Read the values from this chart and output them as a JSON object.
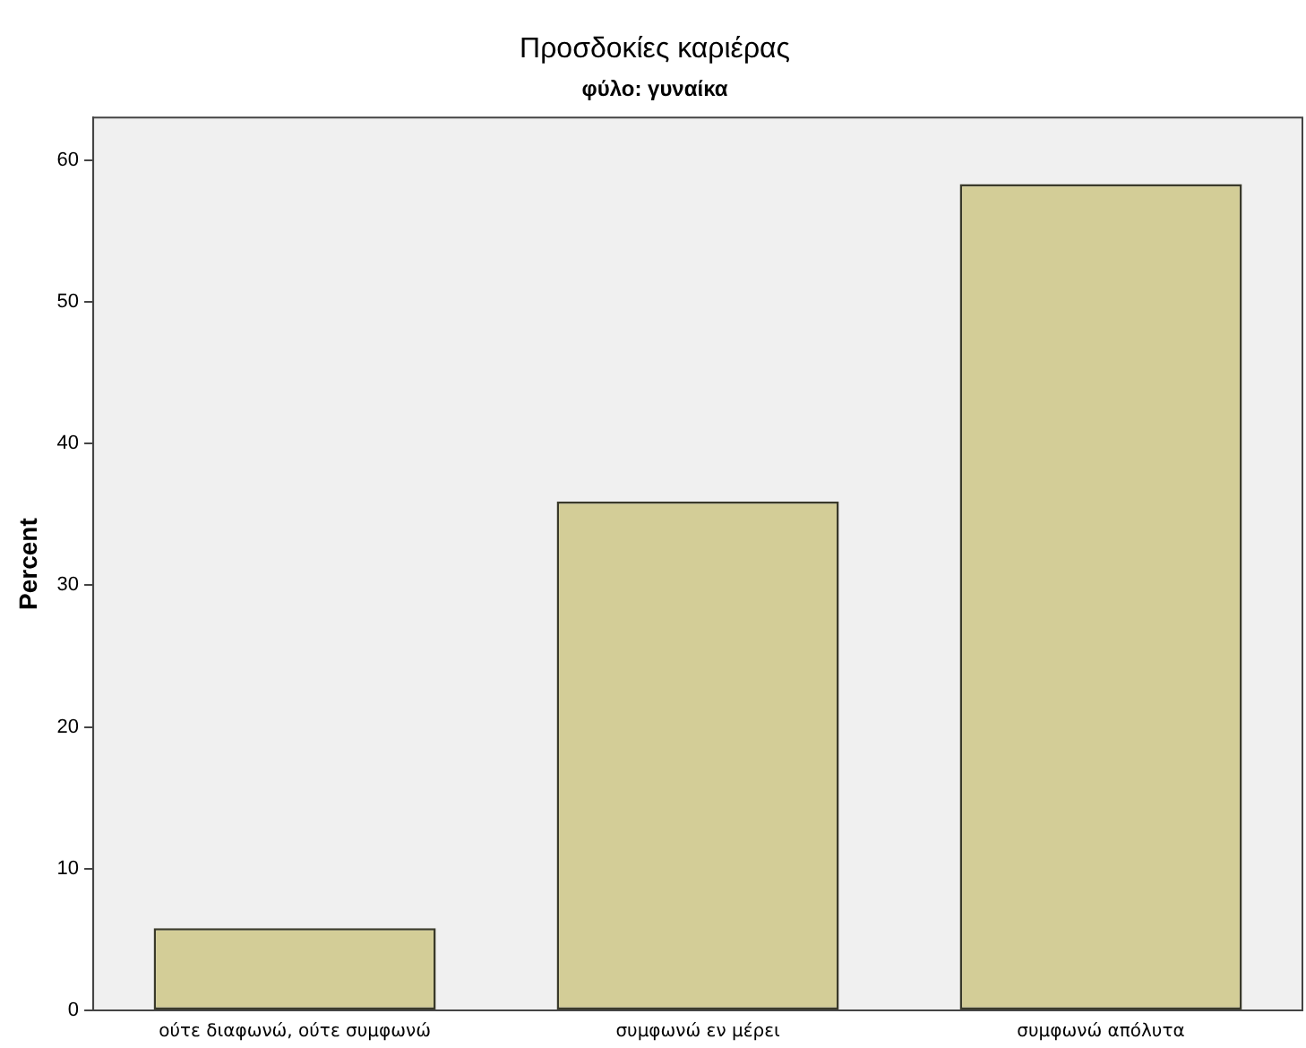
{
  "chart_data": {
    "type": "bar",
    "title": "Προσδοκίες καριέρας",
    "subtitle": "φύλο: γυναίκα",
    "ylabel": "Percent",
    "categories": [
      "ούτε διαφωνώ, ούτε συμφωνώ",
      "συμφωνώ εν μέρει",
      "συμφωνώ απόλυτα"
    ],
    "values": [
      5.8,
      35.9,
      58.3
    ],
    "color": "#d3cd97",
    "ylim": [
      0,
      63
    ],
    "yticks": [
      0,
      10,
      20,
      30,
      40,
      50,
      60
    ],
    "grid": false,
    "legend": false
  }
}
